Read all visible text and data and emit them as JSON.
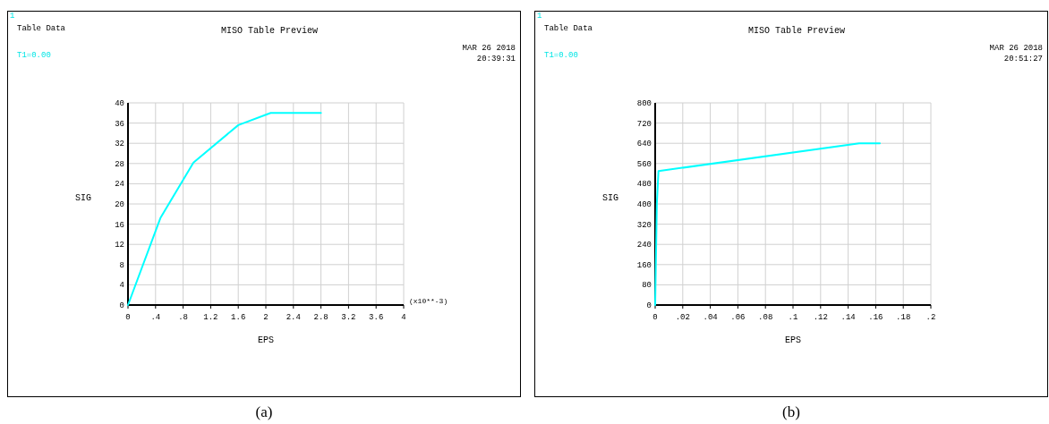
{
  "chart_data": [
    {
      "type": "line",
      "title": "MISO Table Preview",
      "xlabel": "EPS",
      "ylabel": "SIG",
      "annotations": [
        "1",
        "Table Data",
        "T1=0.00",
        "MAR 26 2018",
        "20:39:31",
        "(x10**-3)",
        "(a)"
      ],
      "x": [
        0,
        0.47,
        0.95,
        1.6,
        2.07,
        2.8
      ],
      "series": [
        {
          "color": "#00ffff",
          "values": [
            0,
            17.2,
            28.2,
            35.6,
            38,
            38
          ]
        }
      ],
      "xlim": [
        0,
        4
      ],
      "xticks": [
        0,
        {
          "value": 0.4,
          "label": ".4"
        },
        {
          "value": 0.8,
          "label": ".8"
        },
        1.2,
        1.6,
        2,
        2.4,
        2.8,
        3.2,
        3.6,
        4
      ],
      "ylim": [
        0,
        40
      ],
      "yticks": [
        0,
        4,
        8,
        12,
        16,
        20,
        24,
        28,
        32,
        36,
        40
      ],
      "grid": true
    },
    {
      "type": "line",
      "title": "MISO Table Preview",
      "xlabel": "EPS",
      "ylabel": "SIG",
      "annotations": [
        "1",
        "Table Data",
        "T1=0.00",
        "MAR 26 2018",
        "20:51:27",
        "(b)"
      ],
      "x": [
        0,
        0.0012,
        0.0024,
        0.148,
        0.163
      ],
      "series": [
        {
          "color": "#00ffff",
          "values": [
            0,
            400,
            530,
            640,
            640
          ]
        }
      ],
      "xlim": [
        0,
        0.2
      ],
      "xticks": [
        0,
        {
          "value": 0.02,
          "label": ".02"
        },
        {
          "value": 0.04,
          "label": ".04"
        },
        {
          "value": 0.06,
          "label": ".06"
        },
        {
          "value": 0.08,
          "label": ".08"
        },
        {
          "value": 0.1,
          "label": ".1"
        },
        {
          "value": 0.12,
          "label": ".12"
        },
        {
          "value": 0.14,
          "label": ".14"
        },
        {
          "value": 0.16,
          "label": ".16"
        },
        {
          "value": 0.18,
          "label": ".18"
        },
        {
          "value": 0.2,
          "label": ".2"
        }
      ],
      "ylim": [
        0,
        800
      ],
      "yticks": [
        0,
        80,
        160,
        240,
        320,
        400,
        480,
        560,
        640,
        720,
        800
      ],
      "grid": true
    }
  ]
}
